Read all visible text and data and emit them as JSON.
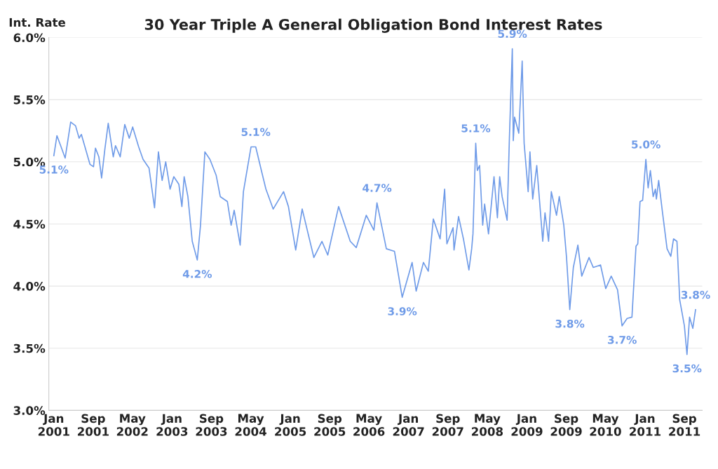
{
  "chart_data": {
    "type": "line",
    "title": "30 Year Triple A General Obligation Bond Interest Rates",
    "ylabel": "Int. Rate",
    "x": [
      "2001-01-01",
      "2001-01-20",
      "2001-02-12",
      "2001-03-12",
      "2001-04-15",
      "2001-05-15",
      "2001-06-06",
      "2001-06-20",
      "2001-08-12",
      "2001-09-03",
      "2001-09-15",
      "2001-10-06",
      "2001-10-23",
      "2001-11-12",
      "2001-12-03",
      "2002-01-03",
      "2002-01-17",
      "2002-02-15",
      "2002-03-15",
      "2002-04-12",
      "2002-05-03",
      "2002-06-09",
      "2002-07-06",
      "2002-08-12",
      "2002-09-15",
      "2002-10-09",
      "2002-11-01",
      "2002-11-23",
      "2002-12-20",
      "2003-01-12",
      "2003-02-12",
      "2003-03-03",
      "2003-03-17",
      "2003-04-09",
      "2003-05-06",
      "2003-06-06",
      "2003-06-26",
      "2003-07-23",
      "2003-08-23",
      "2003-10-01",
      "2003-10-26",
      "2003-12-09",
      "2004-01-01",
      "2004-01-20",
      "2004-02-26",
      "2004-03-17",
      "2004-05-03",
      "2004-06-01",
      "2004-07-06",
      "2004-08-03",
      "2004-09-17",
      "2004-11-20",
      "2004-12-20",
      "2005-02-03",
      "2005-03-15",
      "2005-05-26",
      "2005-07-15",
      "2005-08-20",
      "2005-10-26",
      "2006-01-06",
      "2006-02-12",
      "2006-04-15",
      "2006-06-01",
      "2006-06-20",
      "2006-08-17",
      "2006-10-06",
      "2006-11-23",
      "2007-01-23",
      "2007-02-17",
      "2007-04-03",
      "2007-05-03",
      "2007-06-03",
      "2007-07-15",
      "2007-08-12",
      "2007-08-26",
      "2007-10-03",
      "2007-10-09",
      "2007-11-06",
      "2007-12-06",
      "2008-01-09",
      "2008-01-26",
      "2008-02-03",
      "2008-02-20",
      "2008-03-01",
      "2008-03-15",
      "2008-04-03",
      "2008-04-15",
      "2008-05-09",
      "2008-06-12",
      "2008-07-03",
      "2008-07-17",
      "2008-08-01",
      "2008-09-01",
      "2008-09-15",
      "2008-10-03",
      "2008-10-09",
      "2008-10-17",
      "2008-11-12",
      "2008-12-03",
      "2008-12-15",
      "2009-01-09",
      "2009-01-20",
      "2009-02-06",
      "2009-03-03",
      "2009-04-09",
      "2009-04-23",
      "2009-05-15",
      "2009-06-01",
      "2009-07-03",
      "2009-07-20",
      "2009-08-17",
      "2009-09-03",
      "2009-09-23",
      "2009-10-15",
      "2009-11-12",
      "2009-12-06",
      "2010-01-20",
      "2010-02-15",
      "2010-04-01",
      "2010-05-03",
      "2010-06-06",
      "2010-07-15",
      "2010-08-12",
      "2010-09-12",
      "2010-10-12",
      "2010-11-06",
      "2010-11-17",
      "2010-12-01",
      "2010-12-17",
      "2011-01-06",
      "2011-01-20",
      "2011-02-03",
      "2011-02-20",
      "2011-03-06",
      "2011-03-12",
      "2011-03-26",
      "2011-04-17",
      "2011-05-17",
      "2011-06-09",
      "2011-06-26",
      "2011-07-17",
      "2011-08-03",
      "2011-08-17",
      "2011-09-01",
      "2011-09-17",
      "2011-10-03",
      "2011-10-23",
      "2011-11-09"
    ],
    "series": [
      {
        "color": "#6f9be8",
        "values": [
          5.05,
          5.21,
          5.13,
          5.03,
          5.32,
          5.29,
          5.19,
          5.22,
          4.98,
          4.96,
          5.11,
          5.04,
          4.87,
          5.1,
          5.31,
          5.04,
          5.13,
          5.04,
          5.3,
          5.19,
          5.28,
          5.12,
          5.02,
          4.95,
          4.63,
          5.08,
          4.85,
          5.0,
          4.78,
          4.88,
          4.82,
          4.64,
          4.88,
          4.72,
          4.36,
          4.21,
          4.49,
          5.08,
          5.02,
          4.89,
          4.72,
          4.68,
          4.49,
          4.61,
          4.33,
          4.76,
          5.12,
          5.12,
          4.93,
          4.78,
          4.62,
          4.76,
          4.64,
          4.29,
          4.62,
          4.23,
          4.36,
          4.25,
          4.64,
          4.36,
          4.31,
          4.57,
          4.45,
          4.67,
          4.3,
          4.28,
          3.91,
          4.19,
          3.96,
          4.19,
          4.12,
          4.54,
          4.38,
          4.78,
          4.34,
          4.47,
          4.29,
          4.56,
          4.38,
          4.13,
          4.3,
          4.42,
          5.15,
          4.93,
          4.97,
          4.49,
          4.66,
          4.42,
          4.88,
          4.55,
          4.88,
          4.72,
          4.53,
          5.19,
          5.91,
          5.17,
          5.36,
          5.23,
          5.81,
          5.15,
          4.76,
          5.08,
          4.7,
          4.97,
          4.36,
          4.59,
          4.36,
          4.76,
          4.57,
          4.72,
          4.49,
          4.23,
          3.81,
          4.15,
          4.33,
          4.08,
          4.23,
          4.15,
          4.17,
          3.98,
          4.08,
          3.97,
          3.68,
          3.74,
          3.75,
          4.32,
          4.34,
          4.68,
          4.69,
          5.02,
          4.79,
          4.93,
          4.72,
          4.78,
          4.7,
          4.85,
          4.61,
          4.3,
          4.24,
          4.38,
          4.36,
          3.89,
          3.79,
          3.68,
          3.45,
          3.75,
          3.66,
          3.81
        ]
      }
    ],
    "xlim": [
      "2000-12-01",
      "2011-12-20"
    ],
    "xticks": [
      {
        "value": "2001-01-01",
        "label": "Jan\n2001"
      },
      {
        "value": "2001-09-01",
        "label": "Sep\n2001"
      },
      {
        "value": "2002-05-01",
        "label": "May\n2002"
      },
      {
        "value": "2003-01-01",
        "label": "Jan\n2003"
      },
      {
        "value": "2003-09-01",
        "label": "Sep\n2003"
      },
      {
        "value": "2004-05-01",
        "label": "May\n2004"
      },
      {
        "value": "2005-01-01",
        "label": "Jan\n2005"
      },
      {
        "value": "2005-09-01",
        "label": "Sep\n2005"
      },
      {
        "value": "2006-05-01",
        "label": "May\n2006"
      },
      {
        "value": "2007-01-01",
        "label": "Jan\n2007"
      },
      {
        "value": "2007-09-01",
        "label": "Sep\n2007"
      },
      {
        "value": "2008-05-01",
        "label": "May\n2008"
      },
      {
        "value": "2009-01-01",
        "label": "Jan\n2009"
      },
      {
        "value": "2009-09-01",
        "label": "Sep\n2009"
      },
      {
        "value": "2010-05-01",
        "label": "May\n2010"
      },
      {
        "value": "2011-01-01",
        "label": "Jan\n2011"
      },
      {
        "value": "2011-09-01",
        "label": "Sep\n2011"
      }
    ],
    "ylim": [
      3.0,
      6.0
    ],
    "yticks": [
      {
        "value": 3.0,
        "label": "3.0%"
      },
      {
        "value": 3.5,
        "label": "3.5%"
      },
      {
        "value": 4.0,
        "label": "4.0%"
      },
      {
        "value": 4.5,
        "label": "4.5%"
      },
      {
        "value": 5.0,
        "label": "5.0%"
      },
      {
        "value": 5.5,
        "label": "5.5%"
      },
      {
        "value": 6.0,
        "label": "6.0%"
      }
    ],
    "grid": "y",
    "marker": "none",
    "line_style": "solid",
    "annotations": [
      {
        "text": "5.1%",
        "x": "2001-01-01",
        "y": 5.05
      },
      {
        "text": "4.2%",
        "x": "2003-06-06",
        "y": 4.21
      },
      {
        "text": "5.1%",
        "x": "2004-06-01",
        "y": 5.12
      },
      {
        "text": "4.7%",
        "x": "2006-06-20",
        "y": 4.67
      },
      {
        "text": "3.9%",
        "x": "2006-11-23",
        "y": 3.91
      },
      {
        "text": "5.1%",
        "x": "2008-02-20",
        "y": 5.15
      },
      {
        "text": "5.9%",
        "x": "2008-10-03",
        "y": 5.91
      },
      {
        "text": "3.8%",
        "x": "2009-09-23",
        "y": 3.81
      },
      {
        "text": "3.7%",
        "x": "2010-08-12",
        "y": 3.68
      },
      {
        "text": "5.0%",
        "x": "2011-01-06",
        "y": 5.02
      },
      {
        "text": "3.5%",
        "x": "2011-09-17",
        "y": 3.45
      },
      {
        "text": "3.8%",
        "x": "2011-11-09",
        "y": 3.81
      }
    ]
  }
}
